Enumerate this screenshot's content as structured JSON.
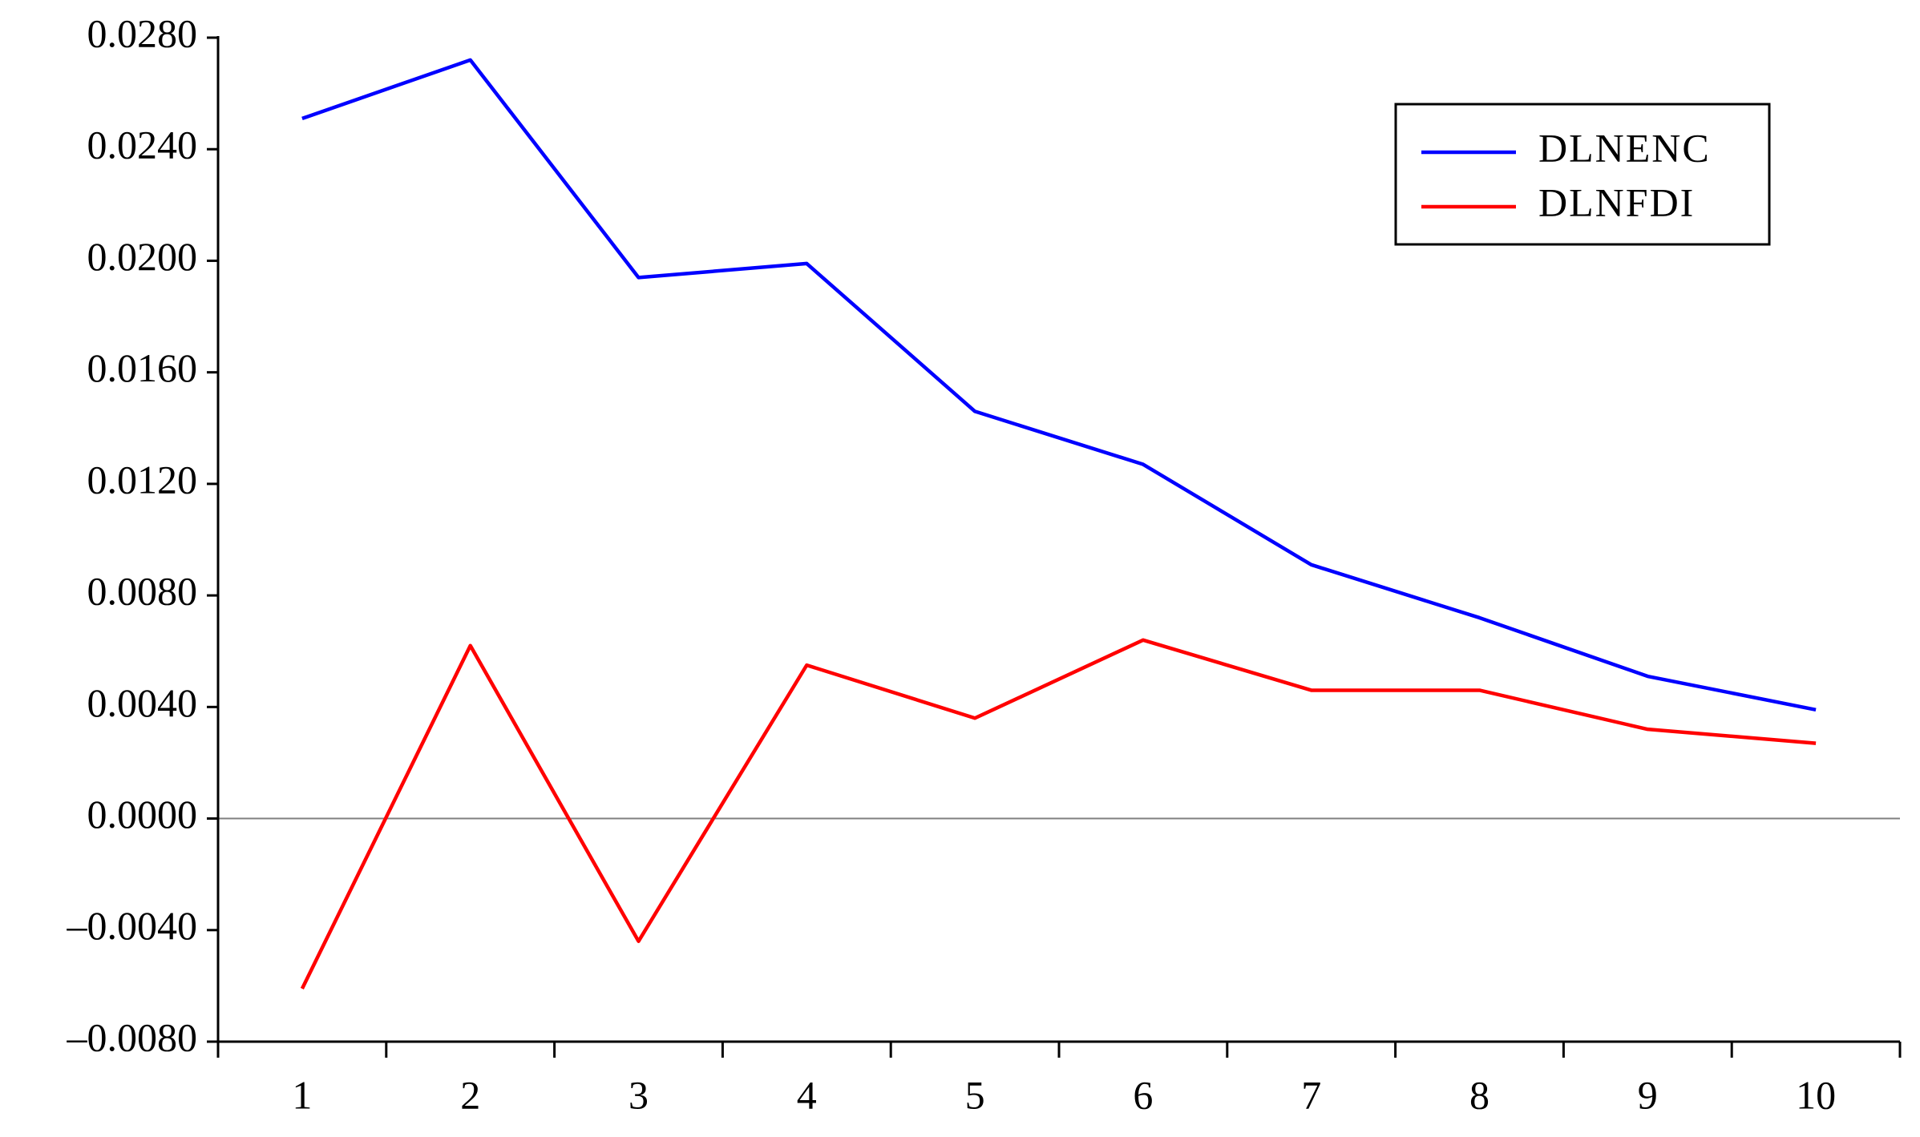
{
  "chart_data": {
    "type": "line",
    "categories": [
      "1",
      "2",
      "3",
      "4",
      "5",
      "6",
      "7",
      "8",
      "9",
      "10"
    ],
    "series": [
      {
        "name": "DLNENC",
        "color": "#0000ff",
        "values": [
          0.0251,
          0.0272,
          0.0194,
          0.0199,
          0.0146,
          0.0127,
          0.0091,
          0.0072,
          0.0051,
          0.0039
        ]
      },
      {
        "name": "DLNFDI",
        "color": "#ff0000",
        "values": [
          -0.0061,
          0.0062,
          -0.0044,
          0.0055,
          0.0036,
          0.0064,
          0.0046,
          0.0046,
          0.0032,
          0.0027
        ]
      }
    ],
    "ylim": [
      -0.008,
      0.028
    ],
    "yticks": [
      {
        "value": -0.008,
        "label": "–0.0080"
      },
      {
        "value": -0.004,
        "label": "–0.0040"
      },
      {
        "value": 0,
        "label": "0.0000"
      },
      {
        "value": 0.004,
        "label": "0.0040"
      },
      {
        "value": 0.008,
        "label": "0.0080"
      },
      {
        "value": 0.012,
        "label": "0.0120"
      },
      {
        "value": 0.016,
        "label": "0.0160"
      },
      {
        "value": 0.02,
        "label": "0.0200"
      },
      {
        "value": 0.024,
        "label": "0.0240"
      },
      {
        "value": 0.028,
        "label": "0.0280"
      }
    ],
    "zero_line": true,
    "legend": "upper right"
  }
}
